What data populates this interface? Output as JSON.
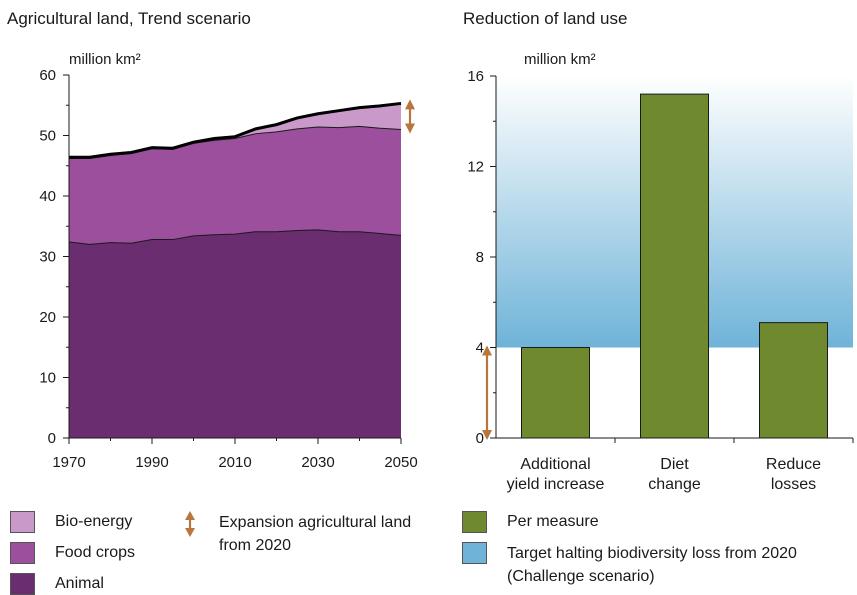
{
  "chart_data": [
    {
      "type": "area",
      "title": "Agricultural land, Trend scenario",
      "ylabel": "million km²",
      "x": [
        1970,
        1975,
        1980,
        1985,
        1990,
        1995,
        2000,
        2005,
        2010,
        2015,
        2020,
        2025,
        2030,
        2035,
        2040,
        2045,
        2050
      ],
      "xticks": [
        "1970",
        "1990",
        "2010",
        "2030",
        "2050"
      ],
      "ylim": [
        0,
        60
      ],
      "yticks": [
        "0",
        "10",
        "20",
        "30",
        "40",
        "50",
        "60"
      ],
      "series": [
        {
          "name": "Animal",
          "color": "#6a2d70",
          "values": [
            32.4,
            32.0,
            32.3,
            32.2,
            32.8,
            32.8,
            33.4,
            33.6,
            33.7,
            34.1,
            34.1,
            34.3,
            34.4,
            34.1,
            34.1,
            33.8,
            33.5
          ]
        },
        {
          "name": "Food crops",
          "color": "#9b4f9c",
          "values": [
            13.8,
            14.2,
            14.4,
            14.8,
            15.0,
            14.9,
            15.3,
            15.6,
            15.8,
            16.2,
            16.5,
            16.8,
            17.0,
            17.2,
            17.4,
            17.4,
            17.5
          ]
        },
        {
          "name": "Bio-energy",
          "color": "#c99ac9",
          "values": [
            0.2,
            0.2,
            0.2,
            0.2,
            0.2,
            0.2,
            0.2,
            0.3,
            0.3,
            0.8,
            1.2,
            1.8,
            2.2,
            2.8,
            3.1,
            3.7,
            4.3
          ]
        }
      ],
      "annotation": "Expansion agricultural land from 2020",
      "annotation_color": "#b8763c"
    },
    {
      "type": "bar",
      "title": "Reduction of land use",
      "ylabel": "million km²",
      "categories": [
        [
          "Additional",
          "yield increase"
        ],
        [
          "Diet",
          "change"
        ],
        [
          "Reduce",
          "losses"
        ]
      ],
      "series": [
        {
          "name": "Per measure",
          "color": "#6f8a2e",
          "values": [
            4.0,
            15.2,
            5.1
          ]
        }
      ],
      "ylim": [
        0,
        16
      ],
      "yticks": [
        "0",
        "4",
        "8",
        "12",
        "16"
      ],
      "target_band": {
        "name": "Target halting biodiversity loss from 2020 (Challenge scenario)",
        "range": [
          4,
          16
        ],
        "color": "#6fb3d8"
      }
    }
  ],
  "legend": {
    "bio_energy": "Bio-energy",
    "food_crops": "Food crops",
    "animal": "Animal",
    "expansion": "Expansion agricultural land from 2020",
    "per_measure": "Per measure",
    "target": "Target halting biodiversity loss from 2020 (Challenge scenario)"
  },
  "colors": {
    "animal": "#6a2d70",
    "food_crops": "#9b4f9c",
    "bio_energy": "#c99ac9",
    "per_measure": "#6f8a2e",
    "target": "#6fb3d8",
    "arrow": "#b8763c"
  }
}
